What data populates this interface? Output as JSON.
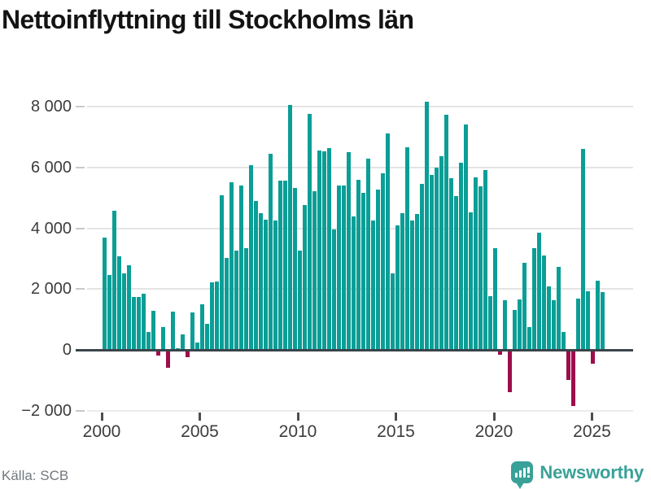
{
  "header": {
    "title": "Nettoinflyttning till Stockholms län"
  },
  "footer": {
    "source": "Källa: SCB",
    "brand_name": "Newsworthy"
  },
  "colors": {
    "positive_bar": "#0a9e96",
    "negative_bar": "#9d0e4b",
    "brand_teal": "#3aa198",
    "axis_line": "#3a444b",
    "gridline": "#e4e4e4",
    "text_dark": "#141414",
    "text_axis": "#3c3c3c",
    "text_gray": "#72787d"
  },
  "chart_data": {
    "type": "bar",
    "title": "Nettoinflyttning till Stockholms län",
    "source": "Källa: SCB",
    "frequency": "quarterly",
    "start_period": "2000 Q1",
    "end_period": "2025 Q3",
    "ylim": [
      -2000,
      8000
    ],
    "grid": true,
    "y_axis": {
      "ticks": [
        {
          "value": 8000,
          "label": "8 000"
        },
        {
          "value": 6000,
          "label": "6 000"
        },
        {
          "value": 4000,
          "label": "4 000"
        },
        {
          "value": 2000,
          "label": "2 000"
        },
        {
          "value": 0,
          "label": "0"
        },
        {
          "value": -2000,
          "label": "−2 000"
        }
      ]
    },
    "x_axis": {
      "ticks": [
        {
          "year": 2000,
          "label": "2000"
        },
        {
          "year": 2005,
          "label": "2005"
        },
        {
          "year": 2010,
          "label": "2010"
        },
        {
          "year": 2015,
          "label": "2015"
        },
        {
          "year": 2020,
          "label": "2020"
        },
        {
          "year": 2025,
          "label": "2025"
        }
      ]
    },
    "series": [
      {
        "name": "Nettoinflyttning",
        "values": [
          3700,
          2460,
          4570,
          3080,
          2510,
          2780,
          1730,
          1750,
          1850,
          580,
          1280,
          -200,
          760,
          -600,
          1260,
          50,
          510,
          -250,
          1240,
          240,
          1490,
          870,
          2220,
          2240,
          5090,
          3040,
          5530,
          3260,
          5400,
          3350,
          6090,
          4890,
          4510,
          4290,
          6460,
          4260,
          5560,
          5560,
          8070,
          5330,
          3270,
          4760,
          7780,
          5220,
          6550,
          6530,
          6640,
          3970,
          5420,
          5420,
          6510,
          4380,
          5600,
          5170,
          6290,
          4270,
          5270,
          5810,
          7130,
          2530,
          4090,
          4490,
          6670,
          4250,
          4480,
          5470,
          8160,
          5750,
          5990,
          6370,
          7740,
          5640,
          5070,
          6160,
          7420,
          4530,
          5690,
          5380,
          5910,
          1780,
          3350,
          -150,
          1640,
          -1390,
          1310,
          1660,
          2860,
          750,
          3340,
          3870,
          3110,
          2090,
          1640,
          2730,
          600,
          -1000,
          -1850,
          1690,
          6610,
          1940,
          -460,
          2270,
          1910
        ]
      }
    ]
  }
}
